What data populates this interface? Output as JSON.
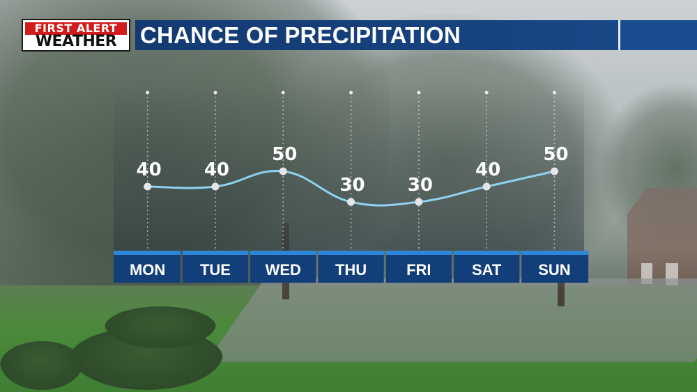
{
  "header": {
    "logo_top": "FIRST ALERT",
    "logo_bottom": "WEATHER",
    "title": "CHANCE OF PRECIPITATION"
  },
  "colors": {
    "title_bar": "#16427f",
    "logo_red": "#d21b1b",
    "day_box": "#123e7a",
    "day_box_top": "#2d86d8",
    "line": "#8fd2f2",
    "point": "#e6e6e6"
  },
  "chart_data": {
    "type": "line",
    "categories": [
      "MON",
      "TUE",
      "WED",
      "THU",
      "FRI",
      "SAT",
      "SUN"
    ],
    "values": [
      40,
      40,
      50,
      30,
      30,
      40,
      50
    ],
    "labels": [
      "40",
      "40",
      "50",
      "30",
      "30",
      "40",
      "50"
    ],
    "title": "CHANCE OF PRECIPITATION",
    "xlabel": "",
    "ylabel": "",
    "grid": "vertical dotted lines per day",
    "legend": "none"
  }
}
